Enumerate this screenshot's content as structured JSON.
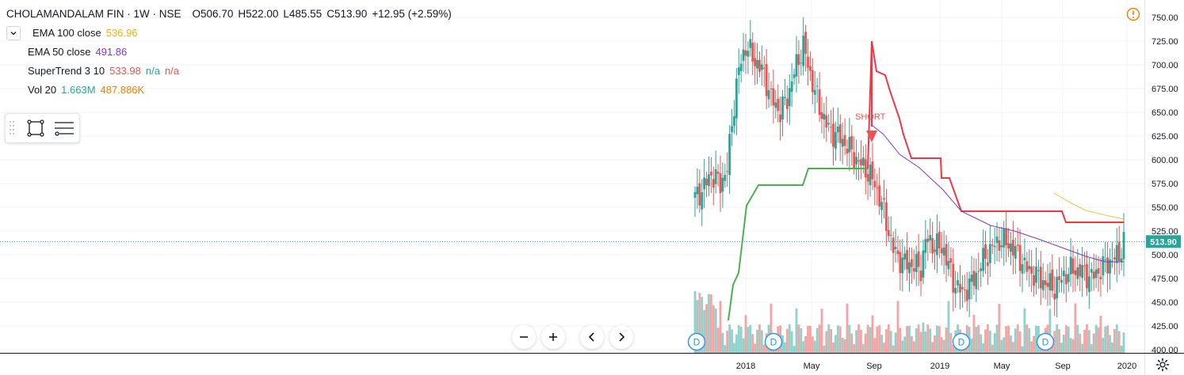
{
  "header": {
    "symbol": "CHOLAMANDALAM FIN · 1W · NSE",
    "open": "O506.70",
    "high": "H522.00",
    "low": "L485.55",
    "close": "C513.90",
    "change": "+12.95 (+2.59%)"
  },
  "indicators": [
    {
      "name": "EMA 100 close",
      "value": "536.96",
      "value_color": "#f5b400"
    },
    {
      "name": "EMA 50 close",
      "value": "491.86",
      "value_color": "#7b39c6"
    },
    {
      "name": "SuperTrend 3 10",
      "value": "533.98",
      "value_color": "#ef5350",
      "extra1": "n/a",
      "extra1_color": "#26a69a",
      "extra2": "n/a",
      "extra2_color": "#ef5350"
    },
    {
      "name": "Vol 20",
      "value": "1.663M",
      "value_color": "#26a69a",
      "extra1": "487.886K",
      "extra1_color": "#f57c00"
    }
  ],
  "price_axis": {
    "ticks": [
      "750.00",
      "725.00",
      "700.00",
      "675.00",
      "650.00",
      "625.00",
      "600.00",
      "575.00",
      "550.00",
      "525.00",
      "500.00",
      "475.00",
      "450.00",
      "425.00",
      "400.00"
    ],
    "last_price": "513.90"
  },
  "time_axis": {
    "ticks": [
      "2018",
      "May",
      "Sep",
      "2019",
      "May",
      "Sep",
      "2020"
    ]
  },
  "annotations": {
    "short_label": "SHORT",
    "dividend_marker": "D"
  },
  "colors": {
    "up": "#26a69a",
    "down": "#ef5350",
    "up_vol": "#8fd1cb",
    "down_vol": "#f4a4a2",
    "supertrend_up": "#4caf50",
    "supertrend_down": "#f23645",
    "ema100": "#f5c242",
    "ema50": "#7b39c6",
    "last_price_line": "#26a69a",
    "warning": "#f57c00"
  },
  "chart_data": {
    "type": "candlestick",
    "x_range": [
      "2017-10",
      "2020-01"
    ],
    "ylim": [
      400,
      750
    ],
    "last_price": 513.9,
    "ohlc": {
      "open": 506.7,
      "high": 522.0,
      "low": 485.55,
      "close": 513.9
    },
    "ema100_last": 536.96,
    "ema50_last": 491.86,
    "supertrend_last": 533.98,
    "volume_last": "1.663M",
    "volume_ma20": "487.886K"
  }
}
